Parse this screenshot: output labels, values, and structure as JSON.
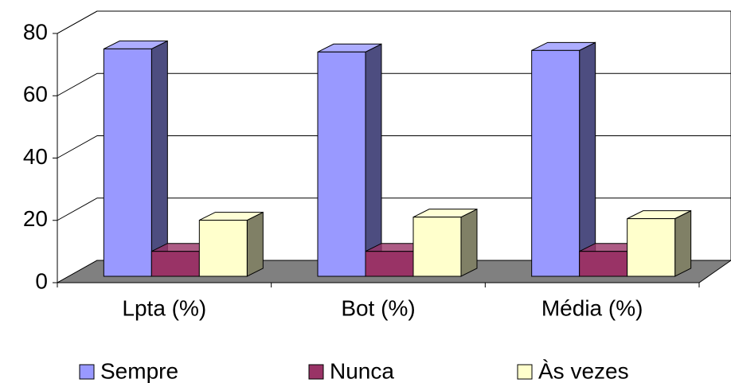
{
  "chart_data": {
    "type": "bar3d",
    "categories": [
      "Lpta (%)",
      "Bot (%)",
      "Média (%)"
    ],
    "series": [
      {
        "name": "Sempre",
        "color": "#9999ff",
        "values": [
          73,
          72,
          72.5
        ]
      },
      {
        "name": "Nunca",
        "color": "#993366",
        "values": [
          8,
          8,
          8
        ]
      },
      {
        "name": "Às vezes",
        "color": "#ffffcc",
        "values": [
          18,
          19,
          18.5
        ]
      }
    ],
    "ylim": [
      0,
      80
    ],
    "yticks": [
      0,
      20,
      40,
      60,
      80
    ],
    "grid": true,
    "legend": "bottom"
  }
}
